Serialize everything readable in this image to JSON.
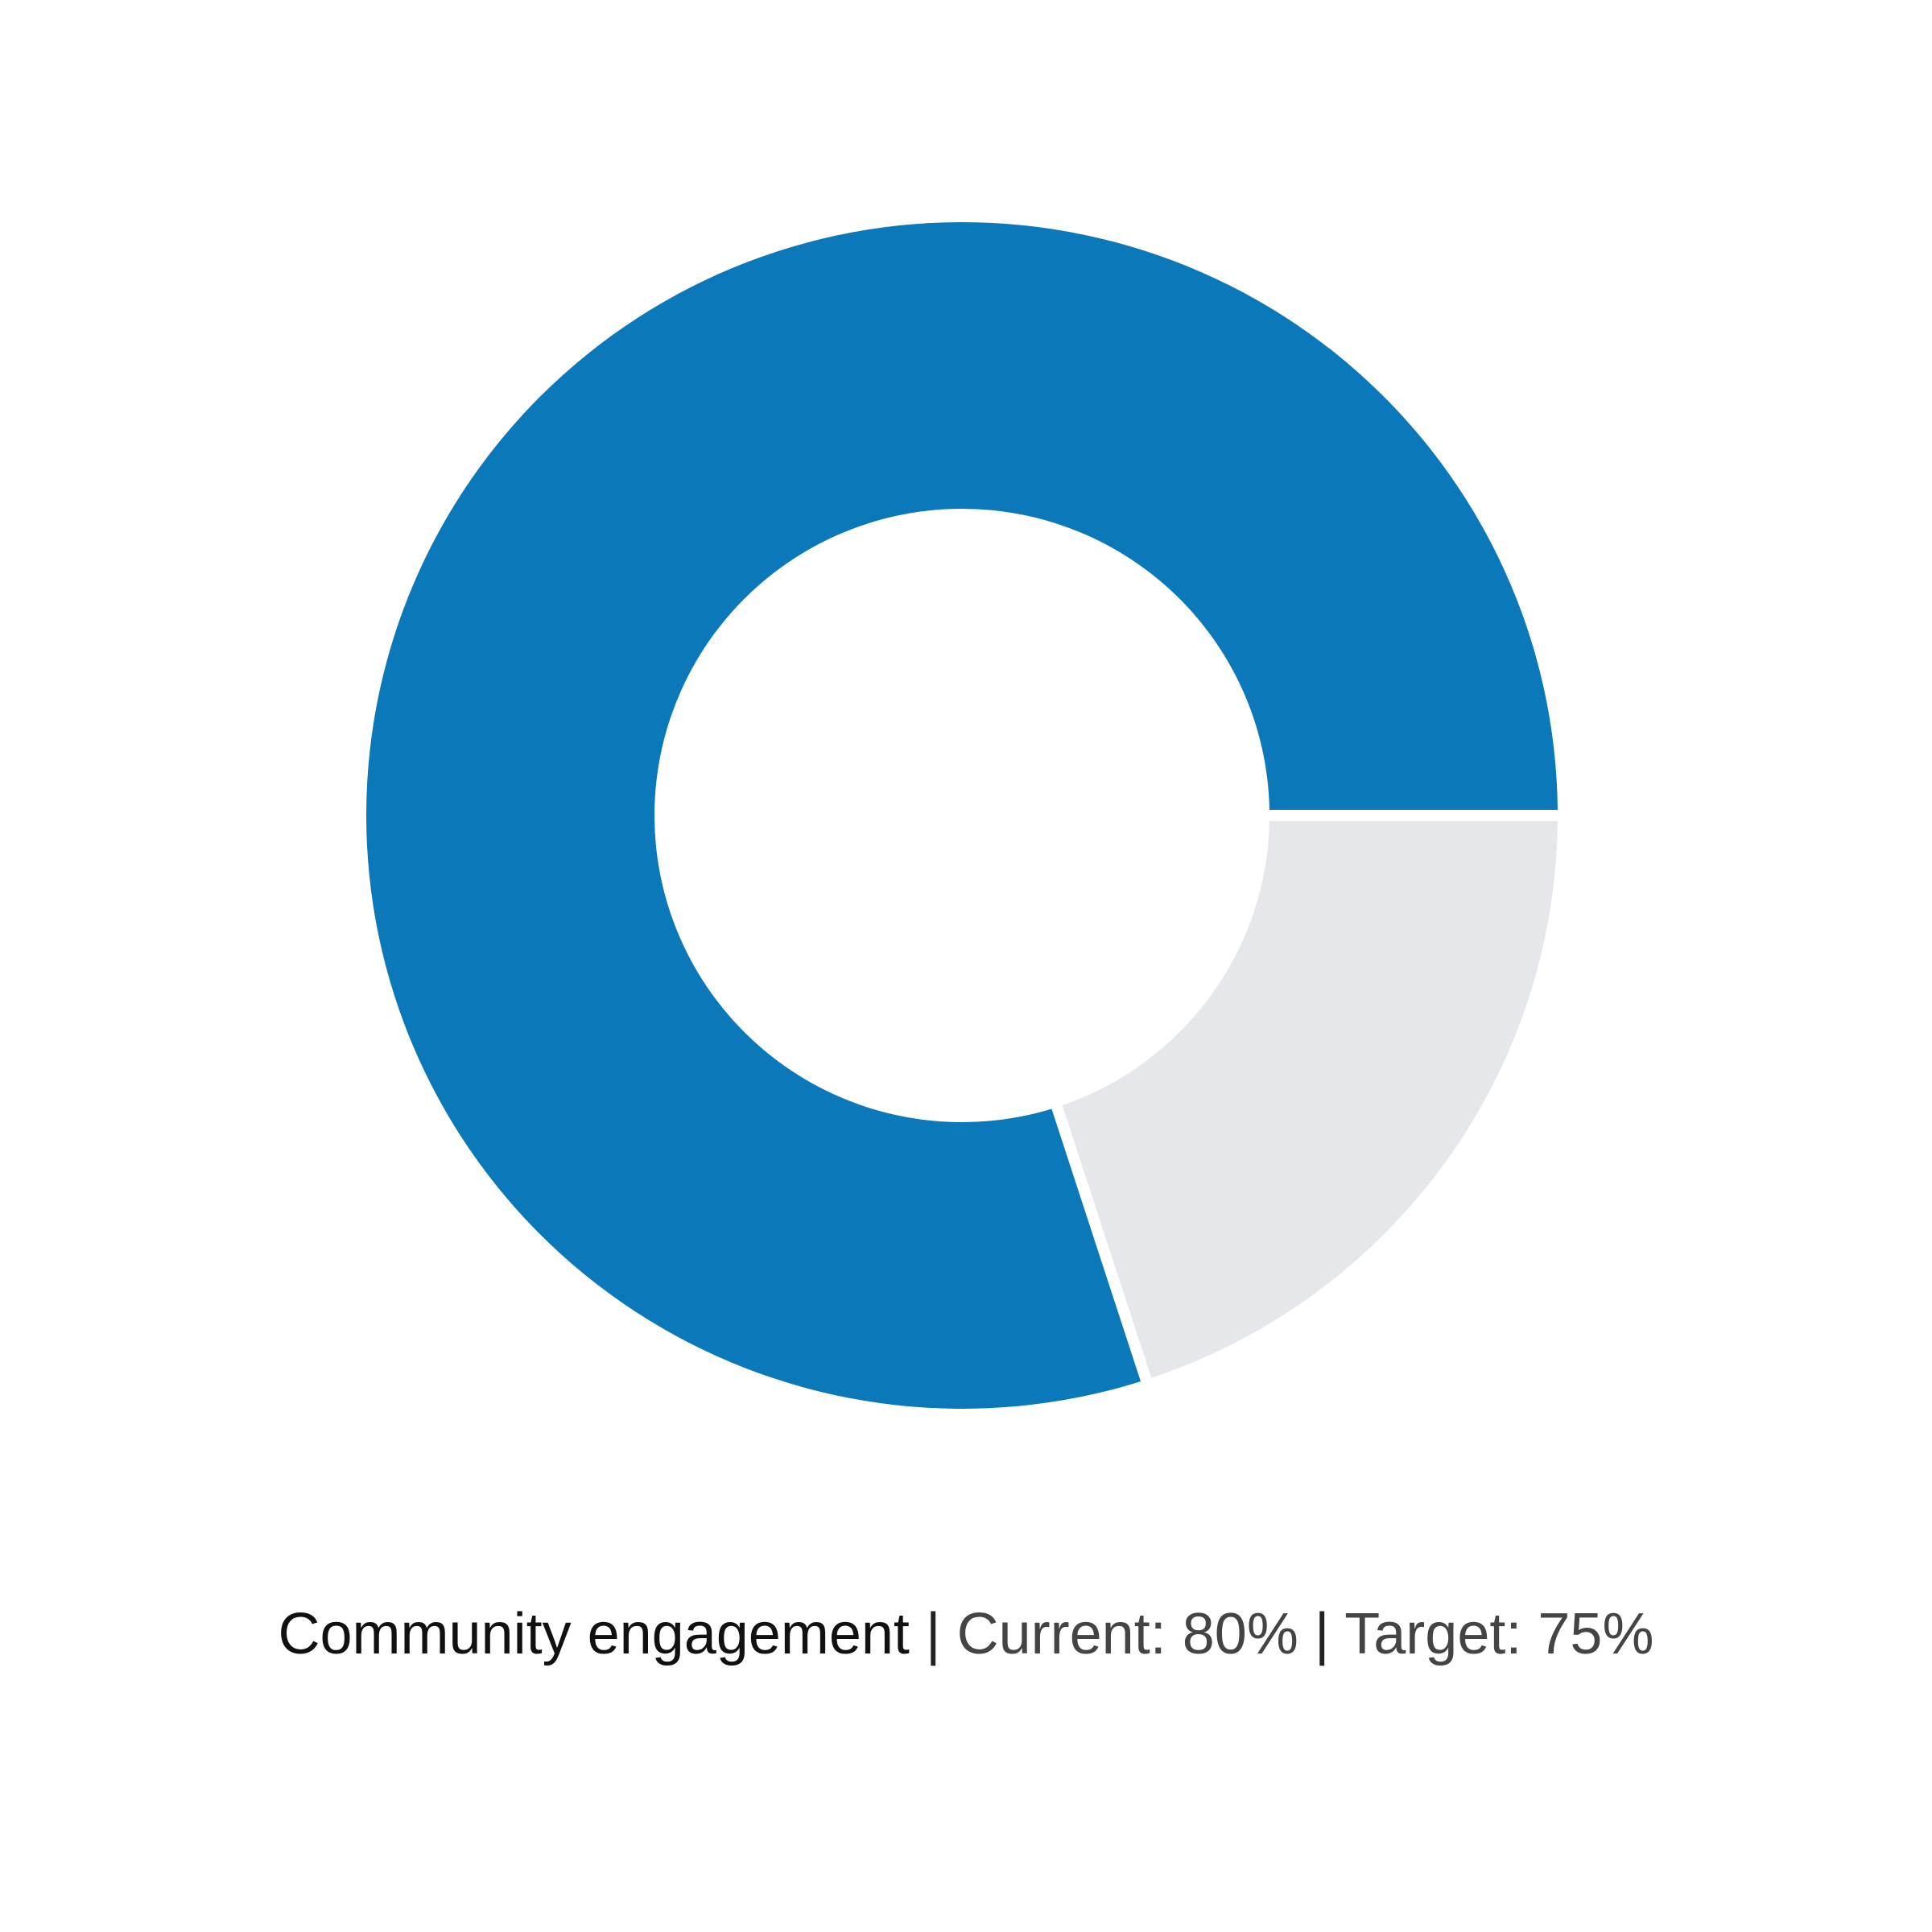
{
  "chart_data": {
    "type": "pie",
    "variant": "donut",
    "metric": "Community engagement",
    "current_label": "Current: 80%",
    "target_label": "Target: 75%",
    "separator": "|",
    "current_value": 80,
    "total": 100,
    "slices": [
      {
        "value": 80,
        "color": "#0b78b9"
      },
      {
        "value": 20,
        "color": "#e5e7eb"
      }
    ]
  }
}
